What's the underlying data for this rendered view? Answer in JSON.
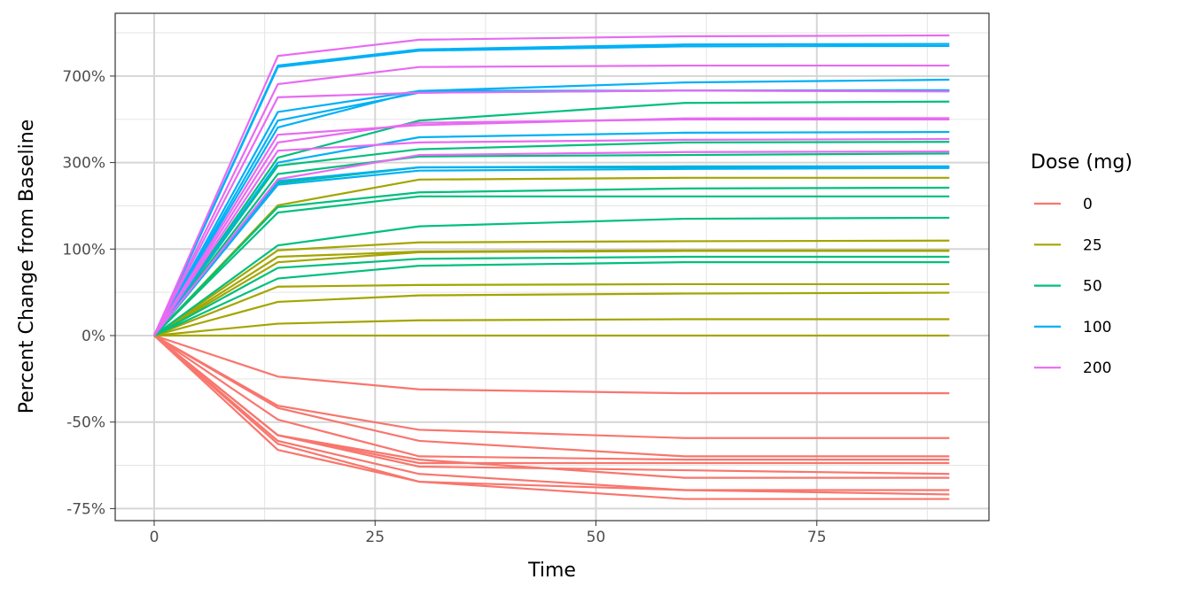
{
  "chart_data": {
    "type": "line",
    "title": "",
    "xlabel": "Time",
    "ylabel": "Percent Change from Baseline",
    "x": [
      0,
      14,
      30,
      60,
      90
    ],
    "xlim": [
      -4,
      94
    ],
    "xticks": [
      0,
      25,
      50,
      75
    ],
    "xtick_labels": [
      "0",
      "25",
      "50",
      "75"
    ],
    "yscale": "log2(1 + percent/100)",
    "yticks": [
      700,
      300,
      100,
      0,
      -50,
      -75
    ],
    "ytick_labels": [
      "700%",
      "300%",
      "100%",
      "0%",
      "-50%",
      "-75%"
    ],
    "grid": true,
    "legend": {
      "title": "Dose (mg)",
      "placement": "right",
      "entries": [
        "0",
        "25",
        "50",
        "100",
        "200"
      ]
    },
    "colors": {
      "0": "#F8766D",
      "25": "#A3A500",
      "50": "#00BF7D",
      "100": "#00B0F6",
      "200": "#E76BF3"
    },
    "series": [
      {
        "dose": "0",
        "values": [
          0,
          -28,
          -35,
          -37,
          -37
        ]
      },
      {
        "dose": "0",
        "values": [
          0,
          -43,
          -53,
          -56,
          -56
        ]
      },
      {
        "dose": "0",
        "values": [
          0,
          -44,
          -57,
          -62,
          -62
        ]
      },
      {
        "dose": "0",
        "values": [
          0,
          -49,
          -62,
          -63,
          -63
        ]
      },
      {
        "dose": "0",
        "values": [
          0,
          -55,
          -64,
          -64,
          -64
        ]
      },
      {
        "dose": "0",
        "values": [
          0,
          -55,
          -65,
          -66,
          -67
        ]
      },
      {
        "dose": "0",
        "values": [
          0,
          -57,
          -67,
          -71,
          -71
        ]
      },
      {
        "dose": "0",
        "values": [
          0,
          -58,
          -69,
          -71,
          -72
        ]
      },
      {
        "dose": "0",
        "values": [
          0,
          -60,
          -69,
          -73,
          -73
        ]
      },
      {
        "dose": "0",
        "values": [
          0,
          -55,
          -63,
          -68,
          -68
        ]
      },
      {
        "dose": "25",
        "values": [
          0,
          0,
          0,
          0,
          0
        ]
      },
      {
        "dose": "25",
        "values": [
          0,
          10,
          13,
          14,
          14
        ]
      },
      {
        "dose": "25",
        "values": [
          0,
          31,
          38,
          40,
          41
        ]
      },
      {
        "dose": "25",
        "values": [
          0,
          48,
          50,
          51,
          51
        ]
      },
      {
        "dose": "25",
        "values": [
          0,
          88,
          96,
          98,
          98
        ]
      },
      {
        "dose": "25",
        "values": [
          0,
          80,
          95,
          97,
          97
        ]
      },
      {
        "dose": "25",
        "values": [
          0,
          98,
          111,
          113,
          114
        ]
      },
      {
        "dose": "25",
        "values": [
          0,
          184,
          249,
          254,
          254
        ]
      },
      {
        "dose": "50",
        "values": [
          0,
          72,
          85,
          88,
          88
        ]
      },
      {
        "dose": "50",
        "values": [
          0,
          58,
          75,
          80,
          80
        ]
      },
      {
        "dose": "50",
        "values": [
          0,
          106,
          140,
          155,
          157
        ]
      },
      {
        "dose": "50",
        "values": [
          0,
          168,
          205,
          205,
          205
        ]
      },
      {
        "dose": "50",
        "values": [
          0,
          180,
          215,
          225,
          227
        ]
      },
      {
        "dose": "50",
        "values": [
          0,
          265,
          320,
          325,
          330
        ]
      },
      {
        "dose": "50",
        "values": [
          0,
          290,
          345,
          370,
          372
        ]
      },
      {
        "dose": "50",
        "values": [
          0,
          316,
          460,
          545,
          552
        ]
      },
      {
        "dose": "50",
        "values": [
          0,
          240,
          285,
          285,
          285
        ]
      },
      {
        "dose": "100",
        "values": [
          0,
          770,
          890,
          930,
          935
        ]
      },
      {
        "dose": "100",
        "values": [
          0,
          760,
          880,
          915,
          918
        ]
      },
      {
        "dose": "100",
        "values": [
          0,
          500,
          610,
          660,
          677
        ]
      },
      {
        "dose": "100",
        "values": [
          0,
          460,
          600,
          612,
          614
        ]
      },
      {
        "dose": "100",
        "values": [
          0,
          300,
          390,
          408,
          411
        ]
      },
      {
        "dose": "100",
        "values": [
          0,
          245,
          285,
          288,
          288
        ]
      },
      {
        "dose": "100",
        "values": [
          0,
          235,
          275,
          280,
          283
        ]
      },
      {
        "dose": "100",
        "values": [
          0,
          430,
          610,
          612,
          614
        ]
      },
      {
        "dose": "200",
        "values": [
          0,
          840,
          970,
          1000,
          1008
        ]
      },
      {
        "dose": "200",
        "values": [
          0,
          575,
          600,
          612,
          607
        ]
      },
      {
        "dose": "200",
        "values": [
          0,
          400,
          440,
          470,
          471
        ]
      },
      {
        "dose": "200",
        "values": [
          0,
          370,
          450,
          465,
          465
        ]
      },
      {
        "dose": "200",
        "values": [
          0,
          340,
          370,
          380,
          383
        ]
      },
      {
        "dose": "200",
        "values": [
          0,
          250,
          325,
          335,
          337
        ]
      },
      {
        "dose": "200",
        "values": [
          0,
          650,
          760,
          770,
          770
        ]
      }
    ]
  }
}
